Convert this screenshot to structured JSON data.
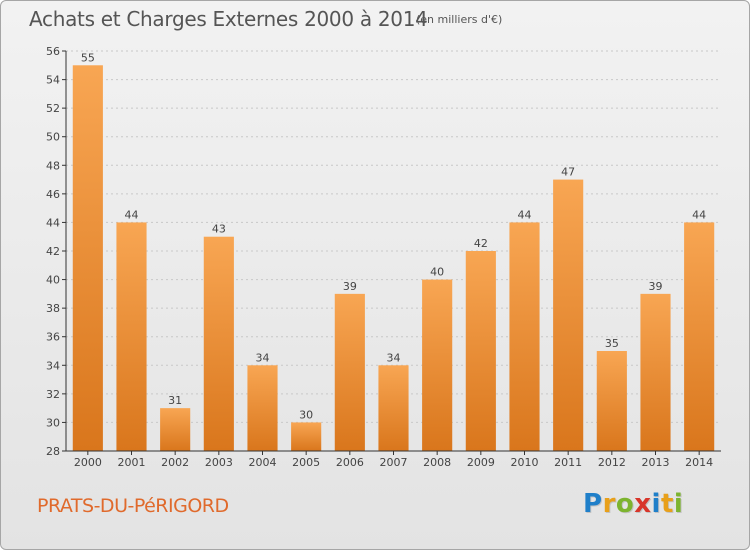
{
  "title": "Achats et Charges Externes 2000 à 2014",
  "subtitle": "(en milliers d'€)",
  "commune": "PRATS-DU-PéRIGORD",
  "logo": {
    "letters": [
      {
        "ch": "P",
        "color": "#1f7fc9"
      },
      {
        "ch": "r",
        "color": "#e8a01a"
      },
      {
        "ch": "o",
        "color": "#7db42f"
      },
      {
        "ch": "x",
        "color": "#d8352a"
      },
      {
        "ch": "i",
        "color": "#1f7fc9"
      },
      {
        "ch": "t",
        "color": "#e8a01a"
      },
      {
        "ch": "i",
        "color": "#7db42f"
      }
    ]
  },
  "colors": {
    "bar_light": "#f8a653",
    "bar_dark": "#d9761c",
    "axis": "#333333",
    "grid": "#c8c8c8",
    "text": "#444444"
  },
  "chart_data": {
    "type": "bar",
    "title": "Achats et Charges Externes 2000 à 2014",
    "xlabel": "",
    "ylabel": "",
    "categories": [
      "2000",
      "2001",
      "2002",
      "2003",
      "2004",
      "2005",
      "2006",
      "2007",
      "2008",
      "2009",
      "2010",
      "2011",
      "2012",
      "2013",
      "2014"
    ],
    "values": [
      55,
      44,
      31,
      43,
      34,
      30,
      39,
      34,
      40,
      42,
      44,
      47,
      35,
      39,
      44
    ],
    "ylim": [
      28,
      56
    ],
    "yticks": [
      28,
      30,
      32,
      34,
      36,
      38,
      40,
      42,
      44,
      46,
      48,
      50,
      52,
      54,
      56
    ],
    "grid": true,
    "data_labels": true
  }
}
